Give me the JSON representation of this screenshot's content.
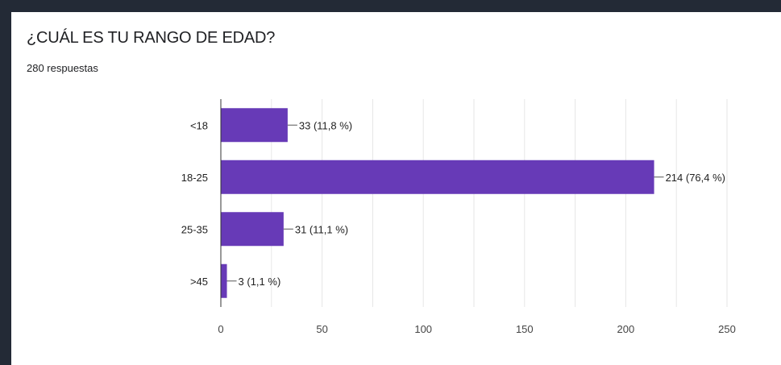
{
  "title": "¿CUÁL ES TU RANGO DE EDAD?",
  "subtitle": "280 respuestas",
  "colors": {
    "bar": "#673ab7",
    "grid": "#e6e6e6",
    "background": "#232a36"
  },
  "chart_data": {
    "type": "bar",
    "orientation": "horizontal",
    "categories": [
      "<18",
      "18-25",
      "25-35",
      ">45"
    ],
    "values": [
      33,
      214,
      31,
      3
    ],
    "data_labels": [
      "33 (11,8 %)",
      "214 (76,4 %)",
      "31 (11,1 %)",
      "3 (1,1 %)"
    ],
    "xlim": [
      0,
      250
    ],
    "xticks": [
      "0",
      "50",
      "100",
      "150",
      "200",
      "250"
    ],
    "grid": true
  }
}
